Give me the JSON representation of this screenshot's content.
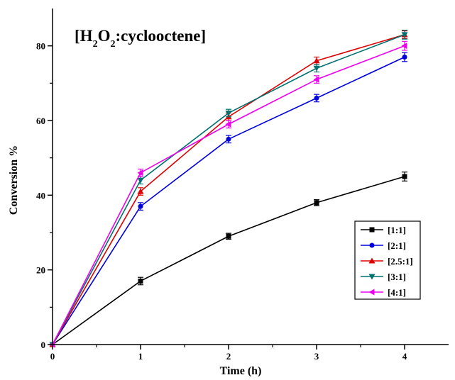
{
  "chart_data": {
    "type": "line",
    "title": "[H2O2:cyclooctene]",
    "title_parts": {
      "open": "[H",
      "sub1": "2",
      "o": "O",
      "sub2": "2",
      "rest": ":cyclooctene]"
    },
    "xlabel": "Time (h)",
    "ylabel": "Conversion %",
    "xlim": [
      0,
      4.5
    ],
    "ylim": [
      0,
      90
    ],
    "x_ticks": [
      0,
      1,
      2,
      3,
      4
    ],
    "y_ticks": [
      0,
      20,
      40,
      60,
      80
    ],
    "x_tick_labels": [
      "0",
      "1",
      "2",
      "3",
      "4"
    ],
    "y_tick_labels": [
      "0",
      "20",
      "40",
      "60",
      "80"
    ],
    "grid": false,
    "legend_position": "bottom-right",
    "x": [
      0,
      1,
      2,
      3,
      4
    ],
    "series": [
      {
        "name": "[1:1]",
        "color": "#000000",
        "marker": "square",
        "values": [
          0,
          17,
          29,
          38,
          45
        ],
        "errors": [
          0,
          1,
          0.8,
          0.8,
          1.2
        ]
      },
      {
        "name": "[2:1]",
        "color": "#0000dd",
        "marker": "circle",
        "values": [
          0,
          37,
          55,
          66,
          77
        ],
        "errors": [
          0,
          1,
          1,
          1,
          1.2
        ]
      },
      {
        "name": "[2.5:1]",
        "color": "#dd0000",
        "marker": "triangle-up",
        "values": [
          0,
          41,
          61,
          76,
          83
        ],
        "errors": [
          0,
          1,
          1,
          1,
          1
        ]
      },
      {
        "name": "[3:1]",
        "color": "#007070",
        "marker": "triangle-down",
        "values": [
          0,
          44,
          62,
          74,
          83
        ],
        "errors": [
          0,
          1,
          1,
          1,
          1.2
        ]
      },
      {
        "name": "[4:1]",
        "color": "#ee00ee",
        "marker": "triangle-left",
        "values": [
          0,
          46,
          59,
          71,
          80
        ],
        "errors": [
          0,
          1,
          1,
          1,
          1.2
        ]
      }
    ]
  }
}
